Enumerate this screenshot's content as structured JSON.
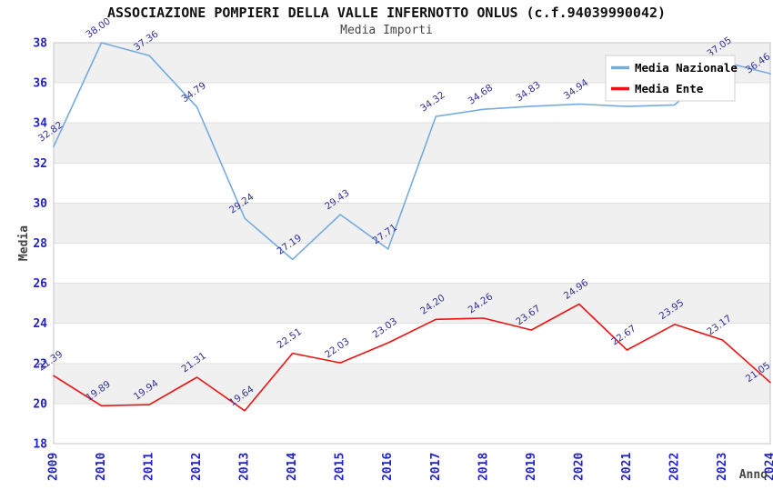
{
  "header": {
    "title": "ASSOCIAZIONE POMPIERI DELLA VALLE INFERNOTTO ONLUS (c.f.94039990042)",
    "subtitle": "Media Importi"
  },
  "chart_data": {
    "type": "line",
    "title": "ASSOCIAZIONE POMPIERI DELLA VALLE INFERNOTTO ONLUS (c.f.94039990042)",
    "subtitle": "Media Importi",
    "xlabel": "Anno",
    "ylabel": "Media",
    "x": [
      2009,
      2010,
      2011,
      2012,
      2013,
      2014,
      2015,
      2016,
      2017,
      2018,
      2019,
      2020,
      2021,
      2022,
      2023,
      2024
    ],
    "series": [
      {
        "name": "Media Nazionale",
        "color": "#74abe2",
        "values": [
          32.82,
          38.0,
          37.36,
          34.79,
          29.24,
          27.19,
          29.43,
          27.71,
          34.32,
          34.68,
          34.83,
          34.94,
          34.82,
          34.9,
          37.05,
          36.46
        ]
      },
      {
        "name": "Media Ente",
        "color": "#ee1111",
        "values": [
          21.39,
          19.89,
          19.94,
          21.31,
          19.64,
          22.51,
          22.03,
          23.03,
          24.2,
          24.26,
          23.67,
          24.96,
          22.67,
          23.95,
          23.17,
          21.05
        ]
      }
    ],
    "ylim": [
      18,
      38
    ],
    "ytick_step": 2,
    "grid": "horizontal",
    "bands": [
      [
        20,
        22
      ],
      [
        24,
        26
      ],
      [
        28,
        30
      ],
      [
        32,
        34
      ],
      [
        36,
        38
      ]
    ],
    "legend_position": "top-right",
    "label_decimals": 2
  },
  "colors": {
    "tick_label": "#2222cc",
    "data_label": "#333399",
    "axis_title": "#444444",
    "band": "#f0f0f0",
    "grid_line": "#e0e0e0",
    "plot_border": "#c6c6c6",
    "legend_bg": "#ffffff",
    "legend_border": "#d0d0d0",
    "legend_text": "#000000"
  }
}
